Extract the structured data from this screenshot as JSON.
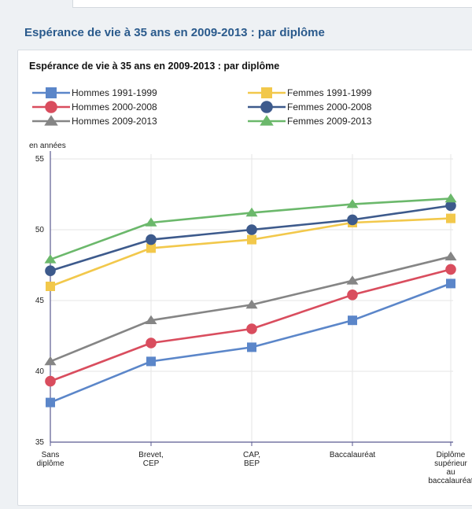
{
  "section_title": "Espérance de vie à 35 ans en 2009-2013 : par diplôme",
  "chart_data": {
    "type": "line",
    "title": "Espérance de vie à 35 ans en 2009-2013 : par diplôme",
    "ylabel": "en années",
    "xlabel": "",
    "ylim": [
      35,
      55
    ],
    "yticks": [
      35,
      40,
      45,
      50,
      55
    ],
    "grid": true,
    "legend_position": "top",
    "categories": [
      [
        "Sans",
        "diplôme"
      ],
      [
        "Brevet,",
        "CEP"
      ],
      [
        "CAP,",
        "BEP"
      ],
      [
        "Baccalauréat"
      ],
      [
        "Diplôme",
        "supérieur",
        "au",
        "baccalauréat"
      ]
    ],
    "series": [
      {
        "name": "Hommes 1991-1999",
        "color": "#5b86c9",
        "marker": "square",
        "values": [
          37.8,
          40.7,
          41.7,
          43.6,
          46.2
        ]
      },
      {
        "name": "Hommes 2000-2008",
        "color": "#d94d5e",
        "marker": "circle",
        "values": [
          39.3,
          42.0,
          43.0,
          45.4,
          47.2
        ]
      },
      {
        "name": "Hommes 2009-2013",
        "color": "#858585",
        "marker": "triangle",
        "values": [
          40.7,
          43.6,
          44.7,
          46.4,
          48.1
        ]
      },
      {
        "name": "Femmes 1991-1999",
        "color": "#f2c84b",
        "marker": "square",
        "values": [
          46.0,
          48.7,
          49.3,
          50.5,
          50.8
        ]
      },
      {
        "name": "Femmes 2000-2008",
        "color": "#3d5a8c",
        "marker": "circle",
        "values": [
          47.1,
          49.3,
          50.0,
          50.7,
          51.7
        ]
      },
      {
        "name": "Femmes 2009-2013",
        "color": "#6bb86b",
        "marker": "triangle",
        "values": [
          47.9,
          50.5,
          51.2,
          51.8,
          52.2
        ]
      }
    ]
  }
}
